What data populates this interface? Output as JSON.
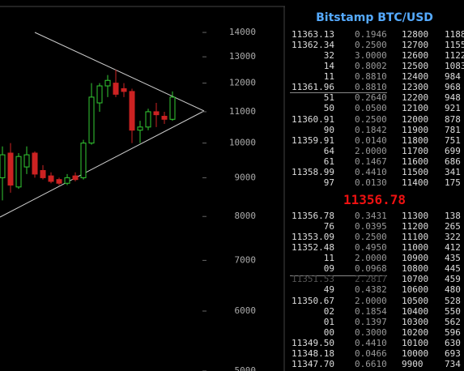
{
  "chart_data": {
    "type": "candlestick",
    "log_scale": true,
    "ylim": [
      5000,
      15150
    ],
    "yticks": [
      14000,
      13000,
      12000,
      11000,
      10000,
      9000,
      8000,
      7000,
      6000,
      5000
    ],
    "up_color": "#33cc33",
    "down_color": "#cc2222",
    "open": [
      9000,
      9700,
      8750,
      9300,
      9700,
      9200,
      9050,
      8950,
      8850,
      9050,
      9000,
      10000,
      11300,
      11900,
      12000,
      11800,
      11700,
      10400,
      10500,
      11000,
      10850,
      10750
    ],
    "high": [
      9900,
      10000,
      9700,
      9900,
      9750,
      9350,
      9150,
      9000,
      9100,
      9150,
      10100,
      12000,
      12000,
      12300,
      12500,
      12000,
      11800,
      10700,
      11100,
      11300,
      11000,
      11700
    ],
    "low": [
      8400,
      8600,
      8700,
      9100,
      9000,
      8950,
      8850,
      8800,
      8800,
      8900,
      8950,
      9950,
      11000,
      11500,
      11500,
      11500,
      10000,
      10000,
      10400,
      10500,
      10600,
      10700
    ],
    "close": [
      9650,
      8800,
      9600,
      9650,
      9100,
      9000,
      8900,
      8850,
      9000,
      8950,
      10000,
      11500,
      11900,
      12100,
      11600,
      11700,
      10400,
      10500,
      11000,
      10900,
      10750,
      11500
    ]
  },
  "order_book": {
    "title": "Bitstamp BTC/USD",
    "last_price": "11356.78",
    "asks": [
      [
        "11363.13",
        "0.1946",
        "12800",
        "1188"
      ],
      [
        "11362.34",
        "0.2500",
        "12700",
        "1155"
      ],
      [
        "32",
        "3.0000",
        "12600",
        "1122"
      ],
      [
        "14",
        "0.8002",
        "12500",
        "1083"
      ],
      [
        "11",
        "0.8810",
        "12400",
        "984"
      ],
      [
        "11361.96",
        "0.8810",
        "12300",
        "968"
      ],
      [
        "51",
        "0.2640",
        "12200",
        "948"
      ],
      [
        "50",
        "0.0500",
        "12100",
        "921"
      ],
      [
        "11360.91",
        "0.2500",
        "12000",
        "878"
      ],
      [
        "90",
        "0.1842",
        "11900",
        "781"
      ],
      [
        "11359.91",
        "0.0140",
        "11800",
        "751"
      ],
      [
        "64",
        "2.0000",
        "11700",
        "699"
      ],
      [
        "61",
        "0.1467",
        "11600",
        "686"
      ],
      [
        "11358.99",
        "0.4410",
        "11500",
        "341"
      ],
      [
        "97",
        "0.0130",
        "11400",
        "175"
      ]
    ],
    "bids": [
      [
        "11356.78",
        "0.3431",
        "11300",
        "138"
      ],
      [
        "76",
        "0.0395",
        "11200",
        "265"
      ],
      [
        "11353.09",
        "0.2500",
        "11100",
        "322"
      ],
      [
        "11352.48",
        "0.4950",
        "11000",
        "412"
      ],
      [
        "11",
        "2.0000",
        "10900",
        "435"
      ],
      [
        "09",
        "0.0968",
        "10800",
        "445"
      ],
      [
        "11351.53",
        "2.2817",
        "10700",
        "459"
      ],
      [
        "49",
        "0.4382",
        "10600",
        "480"
      ],
      [
        "11350.67",
        "2.0000",
        "10500",
        "528"
      ],
      [
        "02",
        "0.1854",
        "10400",
        "550"
      ],
      [
        "01",
        "0.1397",
        "10300",
        "562"
      ],
      [
        "00",
        "0.3000",
        "10200",
        "596"
      ],
      [
        "11349.50",
        "0.4410",
        "10100",
        "630"
      ],
      [
        "11348.18",
        "0.0466",
        "10000",
        "693"
      ],
      [
        "11347.70",
        "0.6610",
        "9900",
        "734"
      ]
    ]
  }
}
